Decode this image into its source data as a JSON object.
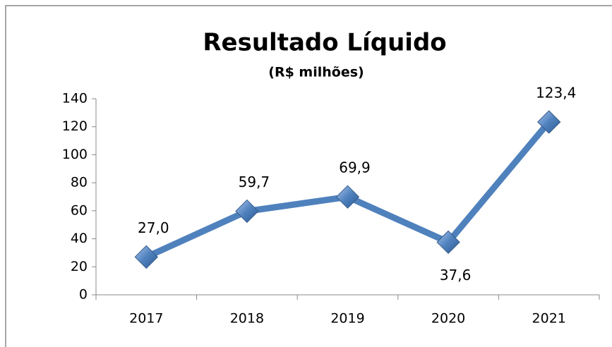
{
  "chart_data": {
    "type": "line",
    "title": "Resultado Líquido",
    "subtitle": "(R$ milhões)",
    "categories": [
      "2017",
      "2018",
      "2019",
      "2020",
      "2021"
    ],
    "series": [
      {
        "name": "Resultado Líquido",
        "color": "#4f81bd",
        "values": [
          27.0,
          59.7,
          69.9,
          37.6,
          123.4
        ],
        "value_labels": [
          "27,0",
          "59,7",
          "69,9",
          "37,6",
          "123,4"
        ]
      }
    ],
    "ylim": [
      0,
      140
    ],
    "yticks": [
      0,
      20,
      40,
      60,
      80,
      100,
      120,
      140
    ],
    "grid": false,
    "legend": false
  }
}
